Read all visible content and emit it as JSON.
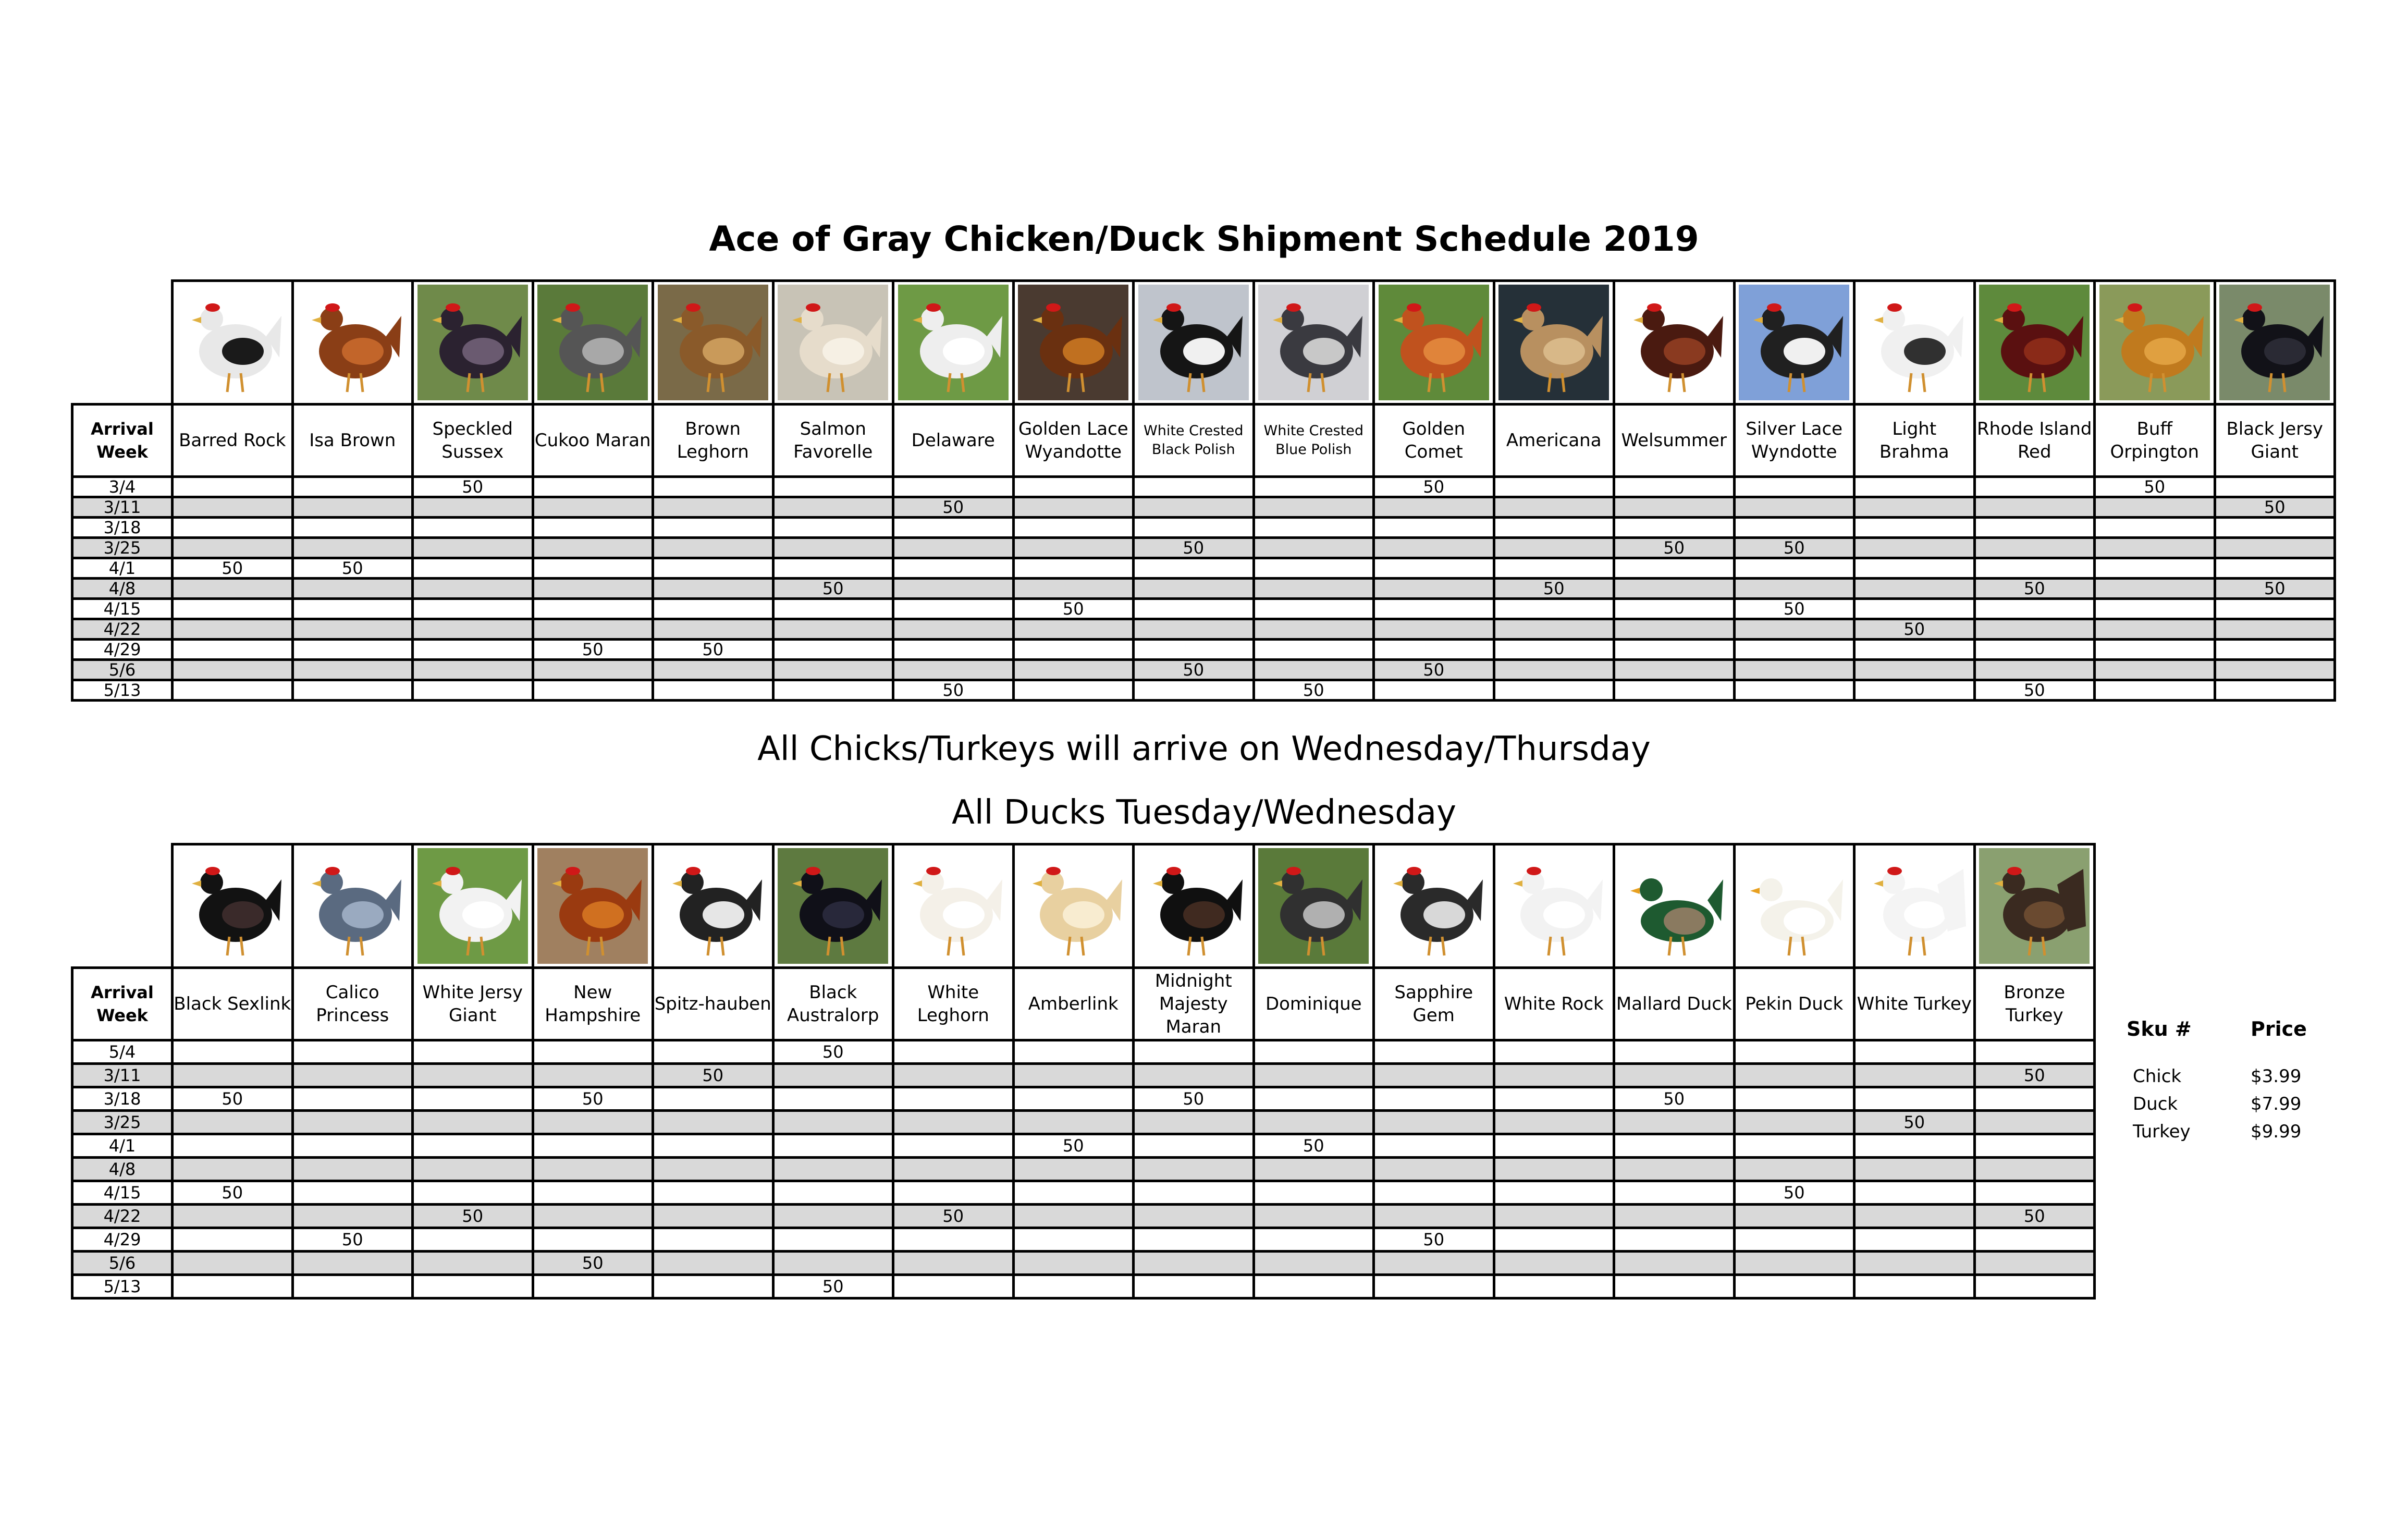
{
  "title": "Ace of Gray Chicken/Duck Shipment Schedule 2019",
  "note_chicks": "All Chicks/Turkeys will arrive on Wednesday/Thursday",
  "note_ducks": "All Ducks Tuesday/Wednesday",
  "arrival_week_header": "Arrival Week",
  "table1": {
    "columns": [
      {
        "name": "Barred Rock",
        "icon": "barred-rock-hen",
        "colors": [
          "#e8e8e8",
          "#1a1a1a"
        ],
        "bg": "#ffffff"
      },
      {
        "name": "Isa Brown",
        "icon": "isa-brown-hen",
        "colors": [
          "#8a3e16",
          "#c2652a"
        ],
        "bg": "#ffffff"
      },
      {
        "name": "Speckled Sussex",
        "icon": "speckled-sussex-hen",
        "colors": [
          "#2b2230",
          "#6a5a70"
        ],
        "bg": "#6f8a4a"
      },
      {
        "name": "Cukoo Maran",
        "icon": "cuckoo-maran-hen",
        "colors": [
          "#555555",
          "#a8a8a8"
        ],
        "bg": "#5a7a3a"
      },
      {
        "name": "Brown Leghorn",
        "icon": "brown-leghorn-hen",
        "colors": [
          "#8a5a2a",
          "#c99a5a"
        ],
        "bg": "#7a6a48"
      },
      {
        "name": "Salmon Favorelle",
        "icon": "salmon-faverolle-hen",
        "colors": [
          "#e6dccb",
          "#f6f0e4"
        ],
        "bg": "#c8c3b6"
      },
      {
        "name": "Delaware",
        "icon": "delaware-hen",
        "colors": [
          "#eeeeee",
          "#ffffff"
        ],
        "bg": "#6e9a45"
      },
      {
        "name": "Golden Lace Wyandotte",
        "icon": "golden-lace-wyandotte-hen",
        "colors": [
          "#6a3010",
          "#c07020"
        ],
        "bg": "#4a3a30"
      },
      {
        "name": "White Crested Black Polish",
        "icon": "white-crested-black-polish-hen",
        "colors": [
          "#151515",
          "#f0f0f0"
        ],
        "bg": "#bfc4cc"
      },
      {
        "name": "White Crested Blue Polish",
        "icon": "white-crested-blue-polish-hen",
        "colors": [
          "#3a3a40",
          "#c8c8c8"
        ],
        "bg": "#d0d0d4"
      },
      {
        "name": "Golden Comet",
        "icon": "golden-comet-hen",
        "colors": [
          "#c0521e",
          "#e0843a"
        ],
        "bg": "#5f8a3a"
      },
      {
        "name": "Americana",
        "icon": "americana-hen",
        "colors": [
          "#b89060",
          "#d8b888"
        ],
        "bg": "#253038"
      },
      {
        "name": "Welsummer",
        "icon": "welsummer-hen",
        "colors": [
          "#4a1a10",
          "#8a3a20"
        ],
        "bg": "#ffffff"
      },
      {
        "name": "Silver Lace Wyndotte",
        "icon": "silver-lace-wyandotte-hen",
        "colors": [
          "#202020",
          "#f0f0f0"
        ],
        "bg": "#7fa0d8"
      },
      {
        "name": "Light Brahma",
        "icon": "light-brahma-hen",
        "colors": [
          "#f0f0f0",
          "#303030"
        ],
        "bg": "#ffffff"
      },
      {
        "name": "Rhode Island Red",
        "icon": "rhode-island-red-hen",
        "colors": [
          "#5a1010",
          "#8a2a18"
        ],
        "bg": "#5e8a3c"
      },
      {
        "name": "Buff Orpington",
        "icon": "buff-orpington-hen",
        "colors": [
          "#c07a1e",
          "#e0a040"
        ],
        "bg": "#8a9a5a"
      },
      {
        "name": "Black Jersy Giant",
        "icon": "black-jersey-giant-hen",
        "colors": [
          "#121218",
          "#2a2a34"
        ],
        "bg": "#7a8a6a"
      }
    ],
    "rows": [
      {
        "week": "3/4",
        "cells": [
          "",
          "",
          "50",
          "",
          "",
          "",
          "",
          "",
          "",
          "",
          "50",
          "",
          "",
          "",
          "",
          "",
          "50",
          ""
        ]
      },
      {
        "week": "3/11",
        "cells": [
          "",
          "",
          "",
          "",
          "",
          "",
          "50",
          "",
          "",
          "",
          "",
          "",
          "",
          "",
          "",
          "",
          "",
          "50"
        ]
      },
      {
        "week": "3/18",
        "cells": [
          "",
          "",
          "",
          "",
          "",
          "",
          "",
          "",
          "",
          "",
          "",
          "",
          "",
          "",
          "",
          "",
          "",
          ""
        ]
      },
      {
        "week": "3/25",
        "cells": [
          "",
          "",
          "",
          "",
          "",
          "",
          "",
          "",
          "50",
          "",
          "",
          "",
          "50",
          "50",
          "",
          "",
          "",
          ""
        ]
      },
      {
        "week": "4/1",
        "cells": [
          "50",
          "50",
          "",
          "",
          "",
          "",
          "",
          "",
          "",
          "",
          "",
          "",
          "",
          "",
          "",
          "",
          "",
          ""
        ]
      },
      {
        "week": "4/8",
        "cells": [
          "",
          "",
          "",
          "",
          "",
          "50",
          "",
          "",
          "",
          "",
          "",
          "50",
          "",
          "",
          "",
          "50",
          "",
          "50"
        ]
      },
      {
        "week": "4/15",
        "cells": [
          "",
          "",
          "",
          "",
          "",
          "",
          "",
          "50",
          "",
          "",
          "",
          "",
          "",
          "50",
          "",
          "",
          "",
          ""
        ]
      },
      {
        "week": "4/22",
        "cells": [
          "",
          "",
          "",
          "",
          "",
          "",
          "",
          "",
          "",
          "",
          "",
          "",
          "",
          "",
          "50",
          "",
          "",
          ""
        ]
      },
      {
        "week": "4/29",
        "cells": [
          "",
          "",
          "",
          "50",
          "50",
          "",
          "",
          "",
          "",
          "",
          "",
          "",
          "",
          "",
          "",
          "",
          "",
          ""
        ]
      },
      {
        "week": "5/6",
        "cells": [
          "",
          "",
          "",
          "",
          "",
          "",
          "",
          "",
          "50",
          "",
          "50",
          "",
          "",
          "",
          "",
          "",
          "",
          ""
        ]
      },
      {
        "week": "5/13",
        "cells": [
          "",
          "",
          "",
          "",
          "",
          "",
          "50",
          "",
          "",
          "50",
          "",
          "",
          "",
          "",
          "",
          "50",
          "",
          ""
        ]
      }
    ]
  },
  "table2": {
    "columns": [
      {
        "name": "Black Sexlink",
        "icon": "black-sexlink-hen",
        "colors": [
          "#121212",
          "#3a2a2a"
        ],
        "bg": "#ffffff"
      },
      {
        "name": "Calico Princess",
        "icon": "calico-princess-hen",
        "colors": [
          "#5a6a80",
          "#9aaac0"
        ],
        "bg": "#ffffff"
      },
      {
        "name": "White Jersy Giant",
        "icon": "white-jersey-giant-hen",
        "colors": [
          "#f2f2f2",
          "#ffffff"
        ],
        "bg": "#6e9a45"
      },
      {
        "name": "New Hampshire",
        "icon": "new-hampshire-hen",
        "colors": [
          "#9a3a10",
          "#d07020"
        ],
        "bg": "#a08060"
      },
      {
        "name": "Spitz-hauben",
        "icon": "spitzhauben-hen",
        "colors": [
          "#222222",
          "#e6e6e6"
        ],
        "bg": "#ffffff"
      },
      {
        "name": "Black Australorp",
        "icon": "black-australorp-hen",
        "colors": [
          "#101018",
          "#28283a"
        ],
        "bg": "#5e7a40"
      },
      {
        "name": "White Leghorn",
        "icon": "white-leghorn-hen",
        "colors": [
          "#f4f0e8",
          "#ffffff"
        ],
        "bg": "#ffffff"
      },
      {
        "name": "Amberlink",
        "icon": "amberlink-hen",
        "colors": [
          "#e8d0a0",
          "#f8ecd0"
        ],
        "bg": "#ffffff"
      },
      {
        "name": "Midnight Majesty Maran",
        "icon": "midnight-majesty-maran-hen",
        "colors": [
          "#101010",
          "#402a20"
        ],
        "bg": "#ffffff"
      },
      {
        "name": "Dominique",
        "icon": "dominique-hen",
        "colors": [
          "#303030",
          "#b0b0b0"
        ],
        "bg": "#5a7a3a"
      },
      {
        "name": "Sapphire Gem",
        "icon": "sapphire-gem-hen",
        "colors": [
          "#2a2a2a",
          "#d8d8d8"
        ],
        "bg": "#ffffff"
      },
      {
        "name": "White Rock",
        "icon": "white-rock-hen",
        "colors": [
          "#f2f2f2",
          "#ffffff"
        ],
        "bg": "#ffffff"
      },
      {
        "name": "Mallard Duck",
        "icon": "mallard-duck",
        "colors": [
          "#1e5a30",
          "#8a7a60"
        ],
        "bg": "#ffffff"
      },
      {
        "name": "Pekin Duck",
        "icon": "pekin-duck",
        "colors": [
          "#f4f2ea",
          "#ffffff"
        ],
        "bg": "#ffffff"
      },
      {
        "name": "White Turkey",
        "icon": "white-turkey",
        "colors": [
          "#f4f4f4",
          "#ffffff"
        ],
        "bg": "#ffffff"
      },
      {
        "name": "Bronze Turkey",
        "icon": "bronze-turkey",
        "colors": [
          "#3a2a20",
          "#6a4a30"
        ],
        "bg": "#8aa070"
      }
    ],
    "rows": [
      {
        "week": "5/4",
        "cells": [
          "",
          "",
          "",
          "",
          "",
          "50",
          "",
          "",
          "",
          "",
          "",
          "",
          "",
          "",
          "",
          ""
        ]
      },
      {
        "week": "3/11",
        "cells": [
          "",
          "",
          "",
          "",
          "50",
          "",
          "",
          "",
          "",
          "",
          "",
          "",
          "",
          "",
          "",
          "50"
        ]
      },
      {
        "week": "3/18",
        "cells": [
          "50",
          "",
          "",
          "50",
          "",
          "",
          "",
          "",
          "50",
          "",
          "",
          "",
          "50",
          "",
          "",
          ""
        ]
      },
      {
        "week": "3/25",
        "cells": [
          "",
          "",
          "",
          "",
          "",
          "",
          "",
          "",
          "",
          "",
          "",
          "",
          "",
          "",
          "50",
          ""
        ]
      },
      {
        "week": "4/1",
        "cells": [
          "",
          "",
          "",
          "",
          "",
          "",
          "",
          "50",
          "",
          "50",
          "",
          "",
          "",
          "",
          "",
          ""
        ]
      },
      {
        "week": "4/8",
        "cells": [
          "",
          "",
          "",
          "",
          "",
          "",
          "",
          "",
          "",
          "",
          "",
          "",
          "",
          "",
          "",
          ""
        ]
      },
      {
        "week": "4/15",
        "cells": [
          "50",
          "",
          "",
          "",
          "",
          "",
          "",
          "",
          "",
          "",
          "",
          "",
          "",
          "50",
          "",
          ""
        ]
      },
      {
        "week": "4/22",
        "cells": [
          "",
          "",
          "50",
          "",
          "",
          "",
          "50",
          "",
          "",
          "",
          "",
          "",
          "",
          "",
          "",
          "50"
        ]
      },
      {
        "week": "4/29",
        "cells": [
          "",
          "50",
          "",
          "",
          "",
          "",
          "",
          "",
          "",
          "",
          "50",
          "",
          "",
          "",
          "",
          ""
        ]
      },
      {
        "week": "5/6",
        "cells": [
          "",
          "",
          "",
          "50",
          "",
          "",
          "",
          "",
          "",
          "",
          "",
          "",
          "",
          "",
          "",
          ""
        ]
      },
      {
        "week": "5/13",
        "cells": [
          "",
          "",
          "",
          "",
          "",
          "50",
          "",
          "",
          "",
          "",
          "",
          "",
          "",
          "",
          "",
          ""
        ]
      }
    ]
  },
  "pricing": {
    "sku_header": "Sku #",
    "price_header": "Price",
    "items": [
      {
        "sku": "Chick",
        "price": "$3.99"
      },
      {
        "sku": "Duck",
        "price": "$7.99"
      },
      {
        "sku": "Turkey",
        "price": "$9.99"
      }
    ]
  }
}
